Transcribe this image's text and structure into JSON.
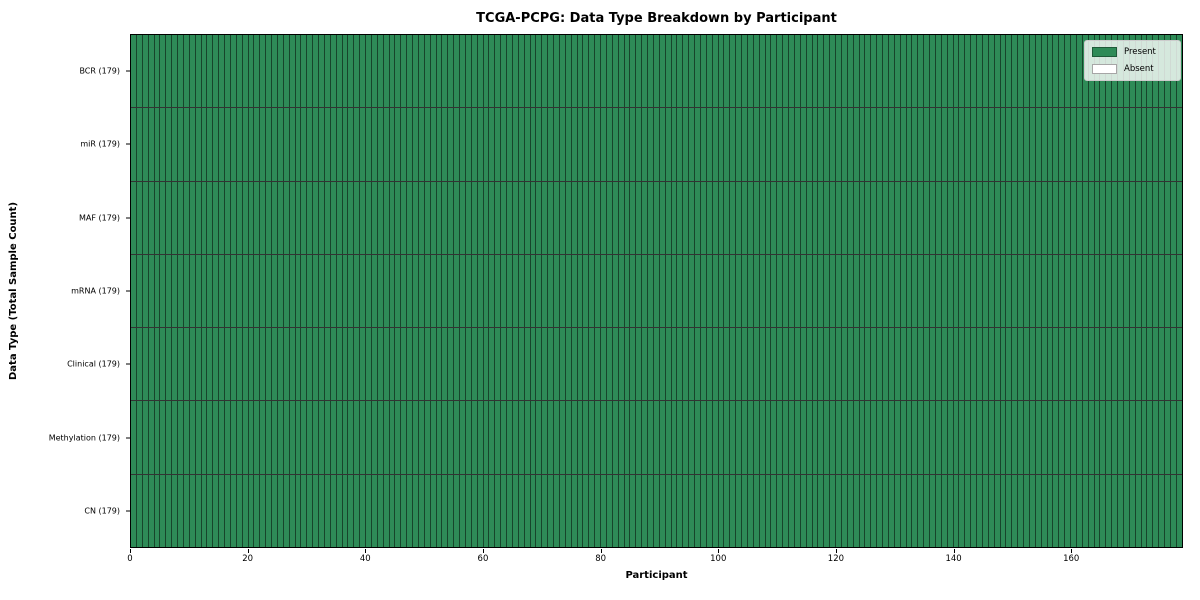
{
  "chart_data": {
    "type": "heatmap",
    "title": "TCGA-PCPG: Data Type Breakdown by Participant",
    "xlabel": "Participant",
    "ylabel": "Data Type (Total Sample Count)",
    "x_range": [
      0,
      179
    ],
    "x_ticks": [
      0,
      20,
      40,
      60,
      80,
      100,
      120,
      140,
      160
    ],
    "n_participants": 179,
    "rows": [
      {
        "data_type": "BCR",
        "label": "BCR (179)",
        "total_samples": 179,
        "present": 179,
        "absent": 0
      },
      {
        "data_type": "miR",
        "label": "miR (179)",
        "total_samples": 179,
        "present": 179,
        "absent": 0
      },
      {
        "data_type": "MAF",
        "label": "MAF (179)",
        "total_samples": 179,
        "present": 179,
        "absent": 0
      },
      {
        "data_type": "mRNA",
        "label": "mRNA (179)",
        "total_samples": 179,
        "present": 179,
        "absent": 0
      },
      {
        "data_type": "Clinical",
        "label": "Clinical (179)",
        "total_samples": 179,
        "present": 179,
        "absent": 0
      },
      {
        "data_type": "Methylation",
        "label": "Methylation (179)",
        "total_samples": 179,
        "present": 179,
        "absent": 0
      },
      {
        "data_type": "CN",
        "label": "CN (179)",
        "total_samples": 179,
        "present": 179,
        "absent": 0
      }
    ],
    "legend": {
      "position": "upper right",
      "entries": [
        {
          "label": "Present",
          "color": "#2e8b57"
        },
        {
          "label": "Absent",
          "color": "#ffffff"
        }
      ]
    },
    "colors": {
      "present": "#2e8b57",
      "absent": "#ffffff",
      "spine": "#000000",
      "text": "#000000"
    },
    "grid": false
  }
}
